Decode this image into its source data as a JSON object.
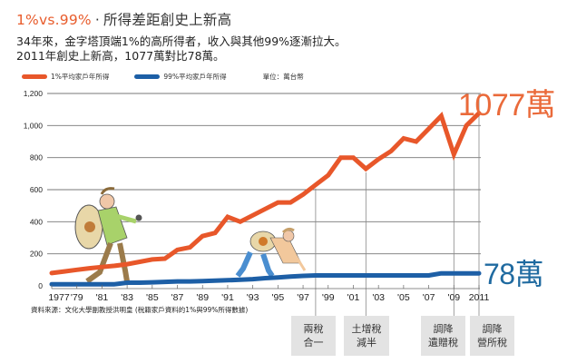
{
  "header": {
    "title_accent": "1%vs.99%",
    "title_sep": "·",
    "title_rest": "所得差距創史上新高",
    "subtitle_line1": "34年來，金字塔頂端1%的高所得者，收入與其他99%逐漸拉大。",
    "subtitle_line2": "2011年創史上新高，1077萬對比78萬。"
  },
  "legend": {
    "series1_label": "1%平均家戶年所得",
    "series2_label": "99%平均家戶年所得",
    "unit": "單位：萬台幣"
  },
  "colors": {
    "top1": "#e8572a",
    "bottom99": "#1d5fa6",
    "grid": "#777777",
    "event_box": "#e3e3e3",
    "label_orange": "#ea6a3a",
    "label_blue": "#1f6aa0"
  },
  "end_labels": {
    "top1": "1077萬",
    "bottom99": "78萬"
  },
  "source": "資料來源：文化大學副教授洪明皇 (稅籍家戶資料的1%與99%所得數據)",
  "events": [
    {
      "year": 1998,
      "line1": "兩稅",
      "line2": "合一"
    },
    {
      "year": 2002,
      "line1": "土增稅",
      "line2": "減半"
    },
    {
      "year": 2009,
      "line1": "調降",
      "line2": "遺贈稅"
    },
    {
      "year": 2011,
      "line1": "調降",
      "line2": "營所稅"
    }
  ],
  "chart_data": {
    "type": "line",
    "title": "1%vs.99%．所得差距創史上新高",
    "subtitle": "34年來，金字塔頂端1%的高所得者，收入與其他99%逐漸拉大。2011年創史上新高，1077萬對比78萬。",
    "xlabel": "",
    "ylabel": "單位：萬台幣",
    "ylim": [
      0,
      1200
    ],
    "yticks": [
      0,
      200,
      400,
      600,
      800,
      1000,
      1200
    ],
    "ytick_labels": [
      "0",
      "200",
      "400",
      "600",
      "800",
      "1,000",
      "1,200"
    ],
    "xtick_labels": [
      "1977",
      "'79",
      "'81",
      "'83",
      "'85",
      "'87",
      "'89",
      "'91",
      "'93",
      "'95",
      "'97",
      "'99",
      "'01",
      "'03",
      "'05",
      "'07",
      "'09",
      "2011"
    ],
    "grid": true,
    "legend_position": "top-left",
    "x": [
      1977,
      1978,
      1979,
      1980,
      1981,
      1982,
      1983,
      1984,
      1985,
      1986,
      1987,
      1988,
      1989,
      1990,
      1991,
      1992,
      1993,
      1994,
      1995,
      1996,
      1997,
      1998,
      1999,
      2000,
      2001,
      2002,
      2003,
      2004,
      2005,
      2006,
      2007,
      2008,
      2009,
      2010,
      2011
    ],
    "series": [
      {
        "name": "1%平均家戶年所得",
        "color": "#e8572a",
        "values": [
          80,
          90,
          100,
          110,
          118,
          125,
          135,
          150,
          165,
          170,
          225,
          240,
          310,
          330,
          430,
          400,
          440,
          480,
          520,
          520,
          570,
          630,
          690,
          800,
          800,
          730,
          790,
          840,
          920,
          900,
          980,
          1060,
          820,
          1000,
          1077
        ]
      },
      {
        "name": "99%平均家戶年所得",
        "color": "#1d5fa6",
        "values": [
          10,
          10,
          10,
          10,
          10,
          10,
          20,
          20,
          22,
          25,
          28,
          28,
          30,
          32,
          35,
          38,
          42,
          48,
          52,
          58,
          62,
          65,
          65,
          65,
          65,
          65,
          65,
          65,
          65,
          65,
          65,
          78,
          78,
          78,
          78
        ]
      }
    ],
    "annotations": [
      {
        "text": "1077萬",
        "x": 2011,
        "y": 1077
      },
      {
        "text": "78萬",
        "x": 2011,
        "y": 78
      },
      {
        "text": "兩稅合一",
        "x": 1998
      },
      {
        "text": "土增稅減半",
        "x": 2002
      },
      {
        "text": "調降遺贈稅",
        "x": 2009
      },
      {
        "text": "調降營所稅",
        "x": 2011
      }
    ]
  }
}
